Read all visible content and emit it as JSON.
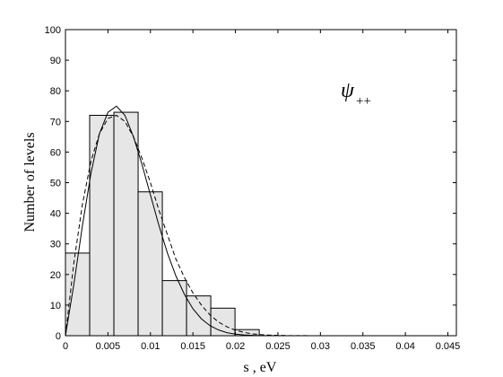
{
  "chart_data": {
    "type": "bar",
    "title": "",
    "xlabel": "s ,  eV",
    "ylabel": "Number of levels",
    "xlim": [
      0,
      0.046
    ],
    "ylim": [
      0,
      100
    ],
    "xticks": [
      0,
      0.005,
      0.01,
      0.015,
      0.02,
      0.025,
      0.03,
      0.035,
      0.04,
      0.045
    ],
    "xtick_labels": [
      "0",
      "0.005",
      "0.01",
      "0.015",
      "0.02",
      "0.025",
      "0.03",
      "0.035",
      "0.04",
      "0.045"
    ],
    "yticks": [
      0,
      10,
      20,
      30,
      40,
      50,
      60,
      70,
      80,
      90,
      100
    ],
    "ytick_labels": [
      "0",
      "10",
      "20",
      "30",
      "40",
      "50",
      "60",
      "70",
      "80",
      "90",
      "100"
    ],
    "grid": false,
    "legend": "none",
    "bins": [
      {
        "x0": 0.0,
        "x1": 0.00285,
        "value": 27
      },
      {
        "x0": 0.00285,
        "x1": 0.0057,
        "value": 72
      },
      {
        "x0": 0.0057,
        "x1": 0.00855,
        "value": 73
      },
      {
        "x0": 0.00855,
        "x1": 0.0114,
        "value": 47
      },
      {
        "x0": 0.0114,
        "x1": 0.01425,
        "value": 18
      },
      {
        "x0": 0.01425,
        "x1": 0.0171,
        "value": 13
      },
      {
        "x0": 0.0171,
        "x1": 0.01995,
        "value": 9
      },
      {
        "x0": 0.01995,
        "x1": 0.0228,
        "value": 2
      }
    ],
    "curves": [
      {
        "style": "solid",
        "x": [
          0,
          0.001,
          0.002,
          0.003,
          0.004,
          0.005,
          0.006,
          0.007,
          0.008,
          0.009,
          0.01,
          0.011,
          0.012,
          0.013,
          0.014,
          0.015,
          0.016,
          0.017,
          0.018,
          0.019,
          0.02,
          0.021,
          0.022,
          0.023,
          0.024,
          0.026,
          0.03,
          0.046
        ],
        "y": [
          0,
          17,
          36,
          53,
          66,
          73,
          75,
          72,
          65,
          56,
          46,
          36,
          27,
          19.5,
          13.5,
          8.8,
          5.5,
          3.3,
          1.9,
          1.0,
          0.5,
          0.25,
          0.12,
          0.05,
          0.02,
          0,
          0,
          0
        ]
      },
      {
        "style": "dashed",
        "x": [
          0,
          0.001,
          0.002,
          0.003,
          0.004,
          0.005,
          0.006,
          0.007,
          0.008,
          0.009,
          0.01,
          0.011,
          0.012,
          0.013,
          0.014,
          0.015,
          0.016,
          0.017,
          0.018,
          0.019,
          0.02,
          0.021,
          0.022,
          0.023,
          0.024,
          0.026,
          0.03,
          0.046
        ],
        "y": [
          0,
          24,
          43,
          57,
          66,
          71,
          72,
          70,
          65,
          58,
          50,
          41,
          33,
          25,
          19,
          14,
          10,
          6.8,
          4.5,
          2.9,
          1.8,
          1.1,
          0.6,
          0.35,
          0.2,
          0.05,
          0,
          0
        ]
      }
    ],
    "annotation": {
      "main": "ψ",
      "sub": "++",
      "x": 0.0325,
      "y": 78
    }
  },
  "colors": {
    "bar_fill": "#e6e6e6",
    "bar_stroke": "#000000",
    "axes": "#000000",
    "curve": "#000000"
  }
}
